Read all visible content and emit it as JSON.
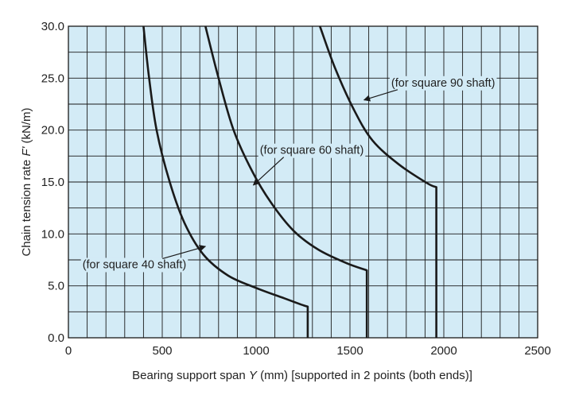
{
  "chart_data": {
    "type": "line",
    "xlabel": "Bearing support span Y (mm) [supported in 2 points (both ends)]",
    "xlabel_parts": {
      "before": "Bearing support span ",
      "italic": "Y",
      "after": " (mm) [supported in 2 points (both ends)]"
    },
    "ylabel": "Chain tension rate F' (kN/m)",
    "ylabel_parts": {
      "before": "Chain tension rate ",
      "italic": "F'",
      "after": "  (kN/m)"
    },
    "xlim": [
      0,
      2500
    ],
    "ylim": [
      0,
      30
    ],
    "x_ticks": [
      0,
      500,
      1000,
      1500,
      2000,
      2500
    ],
    "x_tick_labels": [
      "0",
      "500",
      "1000",
      "1500",
      "2000",
      "2500"
    ],
    "y_ticks": [
      0,
      5,
      10,
      15,
      20,
      25,
      30
    ],
    "y_tick_labels": [
      "0.0",
      "5.0",
      "10.0",
      "15.0",
      "20.0",
      "25.0",
      "30.0"
    ],
    "grid": true,
    "grid_x_step": 100,
    "grid_y_step": 2.5,
    "plot_background": "#d3ebf6",
    "grid_color": "#1a1a1a",
    "line_color": "#1a1a1a",
    "series": [
      {
        "annotation": "(for square 40 shaft)",
        "points": [
          [
            400,
            30
          ],
          [
            430,
            25
          ],
          [
            470,
            20
          ],
          [
            540,
            15
          ],
          [
            620,
            11
          ],
          [
            720,
            8
          ],
          [
            850,
            6
          ],
          [
            1000,
            4.8
          ],
          [
            1150,
            3.8
          ],
          [
            1240,
            3.2
          ],
          [
            1275,
            3.0
          ],
          [
            1275,
            0
          ]
        ]
      },
      {
        "annotation": "(for square 60 shaft)",
        "points": [
          [
            730,
            30
          ],
          [
            800,
            25
          ],
          [
            880,
            20
          ],
          [
            980,
            16
          ],
          [
            1080,
            13
          ],
          [
            1200,
            10.3
          ],
          [
            1330,
            8.5
          ],
          [
            1480,
            7.2
          ],
          [
            1590,
            6.5
          ],
          [
            1590,
            0
          ]
        ]
      },
      {
        "annotation": "(for square 90 shaft)",
        "points": [
          [
            1340,
            30
          ],
          [
            1420,
            26
          ],
          [
            1520,
            22
          ],
          [
            1620,
            19
          ],
          [
            1760,
            16.7
          ],
          [
            1910,
            14.9
          ],
          [
            1960,
            14.5
          ],
          [
            1960,
            0
          ]
        ]
      }
    ],
    "annotations": [
      {
        "text": "(for square 40 shaft)",
        "label_at": [
          75,
          6.7
        ],
        "arrow_to": [
          730,
          8.8
        ]
      },
      {
        "text": "(for square 60 shaft)",
        "label_at": [
          1020,
          17.7
        ],
        "arrow_to": [
          985,
          14.7
        ]
      },
      {
        "text": "(for square 90 shaft)",
        "label_at": [
          1720,
          24.2
        ],
        "arrow_to": [
          1575,
          22.9
        ]
      }
    ]
  }
}
